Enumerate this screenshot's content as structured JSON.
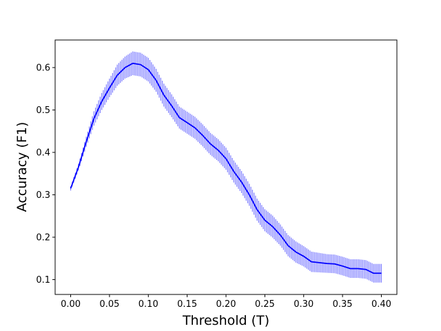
{
  "chart_data": {
    "type": "line",
    "title": "",
    "xlabel": "Threshold (T)",
    "ylabel": "Accuracy (F1)",
    "xlim": [
      -0.02,
      0.42
    ],
    "ylim": [
      0.065,
      0.665
    ],
    "xticks": [
      0.0,
      0.05,
      0.1,
      0.15,
      0.2,
      0.25,
      0.3,
      0.35,
      0.4
    ],
    "xtick_labels": [
      "0.00",
      "0.05",
      "0.10",
      "0.15",
      "0.20",
      "0.25",
      "0.30",
      "0.35",
      "0.40"
    ],
    "yticks": [
      0.1,
      0.2,
      0.3,
      0.4,
      0.5,
      0.6
    ],
    "ytick_labels": [
      "0.1",
      "0.2",
      "0.3",
      "0.4",
      "0.5",
      "0.6"
    ],
    "grid": false,
    "legend": "none",
    "colors": {
      "line": "#0000ff",
      "error_bar": "#7b7bff"
    },
    "series": [
      {
        "x": [
          0.0,
          0.01,
          0.02,
          0.03,
          0.04,
          0.05,
          0.06,
          0.07,
          0.08,
          0.09,
          0.1,
          0.11,
          0.12,
          0.13,
          0.14,
          0.15,
          0.16,
          0.17,
          0.18,
          0.19,
          0.2,
          0.21,
          0.22,
          0.23,
          0.24,
          0.25,
          0.26,
          0.27,
          0.28,
          0.29,
          0.3,
          0.31,
          0.32,
          0.33,
          0.34,
          0.35,
          0.36,
          0.37,
          0.38,
          0.39,
          0.4
        ],
        "y": [
          0.315,
          0.365,
          0.425,
          0.48,
          0.52,
          0.552,
          0.582,
          0.6,
          0.61,
          0.607,
          0.595,
          0.57,
          0.535,
          0.51,
          0.482,
          0.47,
          0.458,
          0.44,
          0.42,
          0.405,
          0.385,
          0.355,
          0.33,
          0.3,
          0.265,
          0.24,
          0.225,
          0.205,
          0.18,
          0.165,
          0.155,
          0.142,
          0.14,
          0.138,
          0.137,
          0.132,
          0.126,
          0.126,
          0.124,
          0.115,
          0.115
        ],
        "error": [
          0.005,
          0.008,
          0.012,
          0.017,
          0.02,
          0.022,
          0.025,
          0.026,
          0.028,
          0.028,
          0.028,
          0.027,
          0.027,
          0.027,
          0.026,
          0.026,
          0.026,
          0.026,
          0.026,
          0.026,
          0.026,
          0.026,
          0.026,
          0.026,
          0.026,
          0.026,
          0.026,
          0.025,
          0.025,
          0.025,
          0.024,
          0.024,
          0.023,
          0.022,
          0.022,
          0.022,
          0.022,
          0.022,
          0.022,
          0.022,
          0.022
        ]
      }
    ]
  }
}
